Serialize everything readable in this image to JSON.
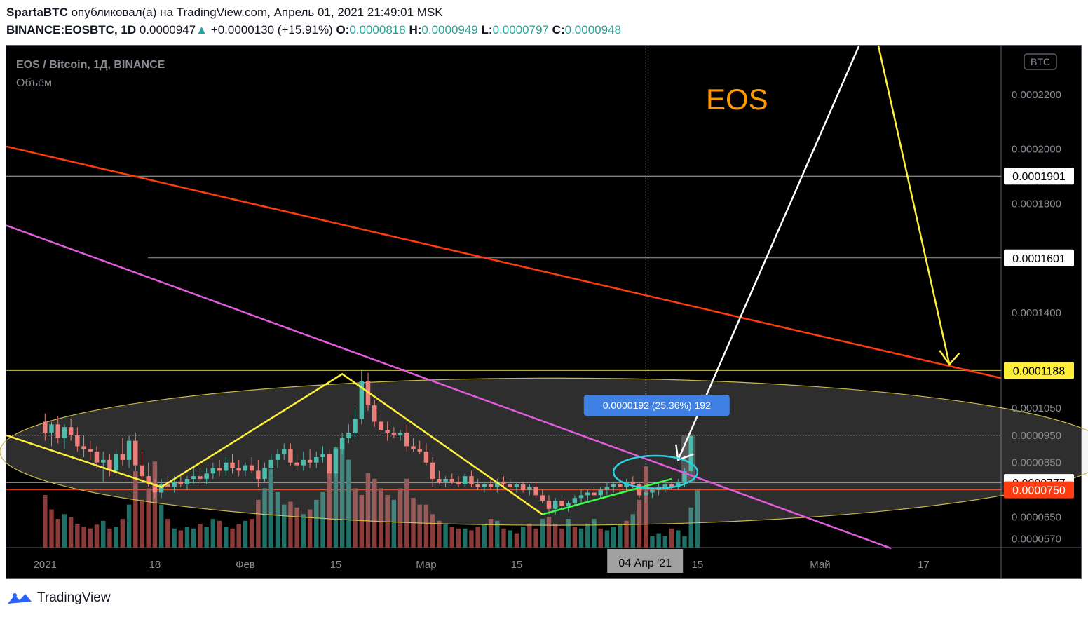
{
  "header": {
    "author": "SpartaBTC",
    "published": "опубликовал(а) на TradingView.com, Апрель 01, 2021 21:49:01 MSK",
    "symbol": "BINANCE:EOSBTC, 1D",
    "price": "0.0000947",
    "change": "+0.0000130 (+15.91%)",
    "o_label": "O:",
    "o": "0.0000818",
    "h_label": "H:",
    "h": "0.0000949",
    "l_label": "L:",
    "l": "0.0000797",
    "c_label": "C:",
    "c": "0.0000948"
  },
  "legend": {
    "title": "EOS / Bitcoin, 1Д, BINANCE",
    "volume": "Объём"
  },
  "currency_badge": "BTC",
  "annotation_text": "EOS",
  "measure_tooltip": "0.0000192 (25.36%) 192",
  "colors": {
    "up": "#4ebaab",
    "down": "#ef7f7a",
    "vol_up": "#1e6f66",
    "vol_down": "#8a3a38",
    "red_line": "#ff3b0f",
    "magenta_line": "#e55be0",
    "yellow": "#ffee3a",
    "green": "#39ff4a",
    "white": "#ffffff",
    "cyan": "#27d4e6"
  },
  "footer": {
    "brand": "TradingView",
    "logo_icon": "tradingview-cloud-icon"
  },
  "chart_data": {
    "type": "candlestick",
    "title": "EOS / Bitcoin, 1Д, BINANCE",
    "ylim": [
      5.38e-05,
      0.000238
    ],
    "y_ticks": [
      "0.0002200",
      "0.0002000",
      "0.0001800",
      "0.0001400",
      "0.0001050",
      "0.0000950",
      "0.0000850",
      "0.0000650",
      "0.0000570"
    ],
    "y_tick_values": [
      0.00022,
      0.0002,
      0.00018,
      0.00014,
      0.000105,
      9.5e-05,
      8.5e-05,
      6.5e-05,
      5.7e-05
    ],
    "price_labels": [
      {
        "text": "0.0001901",
        "value": 0.0001901,
        "style": "white"
      },
      {
        "text": "0.0001601",
        "value": 0.0001601,
        "style": "white"
      },
      {
        "text": "0.0001188",
        "value": 0.0001188,
        "style": "yellow"
      },
      {
        "text": "0.0000777",
        "value": 7.77e-05,
        "style": "white"
      },
      {
        "text": "0.0000750",
        "value": 7.5e-05,
        "style": "red"
      }
    ],
    "x_ticks": [
      "2021",
      "18",
      "Фев",
      "15",
      "Мар",
      "15",
      "15",
      "Май",
      "17"
    ],
    "x_tick_days": [
      0,
      17,
      31,
      45,
      59,
      73,
      101,
      120,
      136
    ],
    "crosshair_label": "04 Апр '21",
    "crosshair_day": 93,
    "x_range_days": [
      -6,
      148
    ],
    "candles": [
      {
        "o": 0.0001,
        "h": 0.000103,
        "l": 9.3e-05,
        "c": 9.6e-05
      },
      {
        "o": 9.6e-05,
        "h": 0.0001,
        "l": 9.1e-05,
        "c": 9.9e-05
      },
      {
        "o": 9.9e-05,
        "h": 0.000102,
        "l": 9.2e-05,
        "c": 9.4e-05
      },
      {
        "o": 9.4e-05,
        "h": 9.9e-05,
        "l": 9e-05,
        "c": 9.8e-05
      },
      {
        "o": 9.8e-05,
        "h": 0.000101,
        "l": 9.3e-05,
        "c": 9.5e-05
      },
      {
        "o": 9.5e-05,
        "h": 9.8e-05,
        "l": 8.9e-05,
        "c": 9.1e-05
      },
      {
        "o": 9.1e-05,
        "h": 9.5e-05,
        "l": 8.7e-05,
        "c": 9e-05
      },
      {
        "o": 9e-05,
        "h": 9.3e-05,
        "l": 8.6e-05,
        "c": 8.9e-05
      },
      {
        "o": 8.9e-05,
        "h": 9.1e-05,
        "l": 8.3e-05,
        "c": 8.5e-05
      },
      {
        "o": 8.5e-05,
        "h": 8.9e-05,
        "l": 7.8e-05,
        "c": 8.6e-05
      },
      {
        "o": 8.6e-05,
        "h": 8.8e-05,
        "l": 8e-05,
        "c": 8.2e-05
      },
      {
        "o": 8.2e-05,
        "h": 9e-05,
        "l": 8e-05,
        "c": 8.8e-05
      },
      {
        "o": 8.8e-05,
        "h": 9.4e-05,
        "l": 8.4e-05,
        "c": 8.6e-05
      },
      {
        "o": 8.6e-05,
        "h": 9.5e-05,
        "l": 8.3e-05,
        "c": 9.3e-05
      },
      {
        "o": 9.3e-05,
        "h": 9.6e-05,
        "l": 8.2e-05,
        "c": 8.4e-05
      },
      {
        "o": 8.4e-05,
        "h": 8.9e-05,
        "l": 7.8e-05,
        "c": 8e-05
      },
      {
        "o": 8e-05,
        "h": 8.5e-05,
        "l": 7.6e-05,
        "c": 7.7e-05
      },
      {
        "o": 7.7e-05,
        "h": 7.9e-05,
        "l": 7.2e-05,
        "c": 7.4e-05
      },
      {
        "o": 7.4e-05,
        "h": 7.9e-05,
        "l": 7.2e-05,
        "c": 7.7e-05
      },
      {
        "o": 7.7e-05,
        "h": 8e-05,
        "l": 7.4e-05,
        "c": 7.6e-05
      },
      {
        "o": 7.6e-05,
        "h": 8e-05,
        "l": 7.4e-05,
        "c": 7.8e-05
      },
      {
        "o": 7.8e-05,
        "h": 8.1e-05,
        "l": 7.6e-05,
        "c": 7.7e-05
      },
      {
        "o": 7.7e-05,
        "h": 8e-05,
        "l": 7.5e-05,
        "c": 7.9e-05
      },
      {
        "o": 7.9e-05,
        "h": 8.4e-05,
        "l": 7.7e-05,
        "c": 8e-05
      },
      {
        "o": 8e-05,
        "h": 8.3e-05,
        "l": 7.7e-05,
        "c": 7.9e-05
      },
      {
        "o": 7.9e-05,
        "h": 8.3e-05,
        "l": 7.7e-05,
        "c": 8.1e-05
      },
      {
        "o": 8.1e-05,
        "h": 8.5e-05,
        "l": 7.9e-05,
        "c": 8.3e-05
      },
      {
        "o": 8.3e-05,
        "h": 8.6e-05,
        "l": 8e-05,
        "c": 8.2e-05
      },
      {
        "o": 8.2e-05,
        "h": 8.7e-05,
        "l": 8e-05,
        "c": 8.5e-05
      },
      {
        "o": 8.5e-05,
        "h": 8.8e-05,
        "l": 8.1e-05,
        "c": 8.3e-05
      },
      {
        "o": 8.3e-05,
        "h": 8.6e-05,
        "l": 8e-05,
        "c": 8.2e-05
      },
      {
        "o": 8.2e-05,
        "h": 8.5e-05,
        "l": 8e-05,
        "c": 8.4e-05
      },
      {
        "o": 8.4e-05,
        "h": 8.7e-05,
        "l": 8.1e-05,
        "c": 8.2e-05
      },
      {
        "o": 8.2e-05,
        "h": 8.6e-05,
        "l": 7.6e-05,
        "c": 7.9e-05
      },
      {
        "o": 7.9e-05,
        "h": 8.5e-05,
        "l": 7.8e-05,
        "c": 8.3e-05
      },
      {
        "o": 8.3e-05,
        "h": 8.8e-05,
        "l": 8.1e-05,
        "c": 8.6e-05
      },
      {
        "o": 8.6e-05,
        "h": 9e-05,
        "l": 8.3e-05,
        "c": 8.8e-05
      },
      {
        "o": 8.8e-05,
        "h": 9.2e-05,
        "l": 8.6e-05,
        "c": 9e-05
      },
      {
        "o": 9e-05,
        "h": 9.2e-05,
        "l": 8.4e-05,
        "c": 8.5e-05
      },
      {
        "o": 8.5e-05,
        "h": 8.8e-05,
        "l": 8.2e-05,
        "c": 8.4e-05
      },
      {
        "o": 8.4e-05,
        "h": 8.9e-05,
        "l": 8.2e-05,
        "c": 8.6e-05
      },
      {
        "o": 8.6e-05,
        "h": 9e-05,
        "l": 8.3e-05,
        "c": 8.5e-05
      },
      {
        "o": 8.5e-05,
        "h": 8.9e-05,
        "l": 8.3e-05,
        "c": 8.7e-05
      },
      {
        "o": 8.7e-05,
        "h": 9.1e-05,
        "l": 8.5e-05,
        "c": 8.8e-05
      },
      {
        "o": 8.8e-05,
        "h": 9e-05,
        "l": 7.9e-05,
        "c": 8.1e-05
      },
      {
        "o": 8.1e-05,
        "h": 9.1e-05,
        "l": 8e-05,
        "c": 9e-05
      },
      {
        "o": 9e-05,
        "h": 9.6e-05,
        "l": 8.8e-05,
        "c": 9.4e-05
      },
      {
        "o": 9.4e-05,
        "h": 9.9e-05,
        "l": 9.2e-05,
        "c": 9.6e-05
      },
      {
        "o": 9.6e-05,
        "h": 0.000105,
        "l": 9.4e-05,
        "c": 0.000101
      },
      {
        "o": 0.000101,
        "h": 0.000119,
        "l": 9.9e-05,
        "c": 0.000115
      },
      {
        "o": 0.000115,
        "h": 0.000118,
        "l": 0.000104,
        "c": 0.000106
      },
      {
        "o": 0.000106,
        "h": 0.000108,
        "l": 9.8e-05,
        "c": 0.0001
      },
      {
        "o": 0.0001,
        "h": 0.000103,
        "l": 9.5e-05,
        "c": 9.7e-05
      },
      {
        "o": 9.7e-05,
        "h": 0.0001,
        "l": 9.3e-05,
        "c": 9.6e-05
      },
      {
        "o": 9.6e-05,
        "h": 9.8e-05,
        "l": 9.4e-05,
        "c": 9.5e-05
      },
      {
        "o": 9.5e-05,
        "h": 9.7e-05,
        "l": 9.3e-05,
        "c": 9.6e-05
      },
      {
        "o": 9.6e-05,
        "h": 9.9e-05,
        "l": 8.9e-05,
        "c": 9.1e-05
      },
      {
        "o": 9.1e-05,
        "h": 9.4e-05,
        "l": 8.9e-05,
        "c": 9e-05
      },
      {
        "o": 9e-05,
        "h": 9.3e-05,
        "l": 8.8e-05,
        "c": 8.9e-05
      },
      {
        "o": 8.9e-05,
        "h": 9.2e-05,
        "l": 8.4e-05,
        "c": 8.5e-05
      },
      {
        "o": 8.5e-05,
        "h": 8.7e-05,
        "l": 7.6e-05,
        "c": 7.9e-05
      },
      {
        "o": 7.9e-05,
        "h": 8.2e-05,
        "l": 7.7e-05,
        "c": 7.8e-05
      },
      {
        "o": 7.8e-05,
        "h": 8e-05,
        "l": 7.6e-05,
        "c": 7.9e-05
      },
      {
        "o": 7.9e-05,
        "h": 8.1e-05,
        "l": 7.7e-05,
        "c": 7.8e-05
      },
      {
        "o": 7.8e-05,
        "h": 8e-05,
        "l": 7.6e-05,
        "c": 7.7e-05
      },
      {
        "o": 7.7e-05,
        "h": 8.1e-05,
        "l": 7.6e-05,
        "c": 8e-05
      },
      {
        "o": 8e-05,
        "h": 8.2e-05,
        "l": 7.6e-05,
        "c": 7.7e-05
      },
      {
        "o": 7.7e-05,
        "h": 7.9e-05,
        "l": 7.5e-05,
        "c": 7.6e-05
      },
      {
        "o": 7.6e-05,
        "h": 7.8e-05,
        "l": 7.4e-05,
        "c": 7.7e-05
      },
      {
        "o": 7.7e-05,
        "h": 7.9e-05,
        "l": 7.5e-05,
        "c": 7.6e-05
      },
      {
        "o": 7.6e-05,
        "h": 7.9e-05,
        "l": 7.4e-05,
        "c": 7.8e-05
      },
      {
        "o": 7.8e-05,
        "h": 8e-05,
        "l": 7.6e-05,
        "c": 7.7e-05
      },
      {
        "o": 7.7e-05,
        "h": 7.9e-05,
        "l": 7.5e-05,
        "c": 7.6e-05
      },
      {
        "o": 7.6e-05,
        "h": 7.8e-05,
        "l": 7.4e-05,
        "c": 7.7e-05
      },
      {
        "o": 7.7e-05,
        "h": 7.8e-05,
        "l": 7.4e-05,
        "c": 7.5e-05
      },
      {
        "o": 7.5e-05,
        "h": 7.7e-05,
        "l": 7.3e-05,
        "c": 7.6e-05
      },
      {
        "o": 7.6e-05,
        "h": 7.8e-05,
        "l": 7.2e-05,
        "c": 7.3e-05
      },
      {
        "o": 7.3e-05,
        "h": 7.5e-05,
        "l": 7e-05,
        "c": 7.1e-05
      },
      {
        "o": 7.1e-05,
        "h": 7.3e-05,
        "l": 6.6e-05,
        "c": 6.8e-05
      },
      {
        "o": 6.8e-05,
        "h": 7.2e-05,
        "l": 6.6e-05,
        "c": 7.1e-05
      },
      {
        "o": 7.1e-05,
        "h": 7.3e-05,
        "l": 6.8e-05,
        "c": 6.9e-05
      },
      {
        "o": 6.9e-05,
        "h": 7.1e-05,
        "l": 6.7e-05,
        "c": 7e-05
      },
      {
        "o": 7e-05,
        "h": 7.3e-05,
        "l": 6.9e-05,
        "c": 7.2e-05
      },
      {
        "o": 7.2e-05,
        "h": 7.5e-05,
        "l": 7e-05,
        "c": 7.3e-05
      },
      {
        "o": 7.3e-05,
        "h": 7.5e-05,
        "l": 7.1e-05,
        "c": 7.4e-05
      },
      {
        "o": 7.4e-05,
        "h": 7.6e-05,
        "l": 7.2e-05,
        "c": 7.3e-05
      },
      {
        "o": 7.3e-05,
        "h": 7.6e-05,
        "l": 7.2e-05,
        "c": 7.5e-05
      },
      {
        "o": 7.5e-05,
        "h": 7.8e-05,
        "l": 7.3e-05,
        "c": 7.6e-05
      },
      {
        "o": 7.6e-05,
        "h": 7.8e-05,
        "l": 7.4e-05,
        "c": 7.7e-05
      },
      {
        "o": 7.7e-05,
        "h": 7.9e-05,
        "l": 7.4e-05,
        "c": 7.6e-05
      },
      {
        "o": 7.6e-05,
        "h": 7.9e-05,
        "l": 7.4e-05,
        "c": 7.8e-05
      },
      {
        "o": 7.8e-05,
        "h": 8e-05,
        "l": 7.5e-05,
        "c": 7.7e-05
      },
      {
        "o": 7.7e-05,
        "h": 7.8e-05,
        "l": 7.2e-05,
        "c": 7.3e-05
      },
      {
        "o": 7.3e-05,
        "h": 7.6e-05,
        "l": 7e-05,
        "c": 7.4e-05
      },
      {
        "o": 7.4e-05,
        "h": 7.6e-05,
        "l": 7.2e-05,
        "c": 7.5e-05
      },
      {
        "o": 7.5e-05,
        "h": 7.8e-05,
        "l": 7.3e-05,
        "c": 7.6e-05
      },
      {
        "o": 7.6e-05,
        "h": 7.8e-05,
        "l": 7.4e-05,
        "c": 7.7e-05
      },
      {
        "o": 7.7e-05,
        "h": 7.8e-05,
        "l": 7.5e-05,
        "c": 7.6e-05
      },
      {
        "o": 7.6e-05,
        "h": 7.9e-05,
        "l": 7.5e-05,
        "c": 7.8e-05
      },
      {
        "o": 7.8e-05,
        "h": 8.3e-05,
        "l": 7.6e-05,
        "c": 8.18e-05
      },
      {
        "o": 8.18e-05,
        "h": 9.49e-05,
        "l": 7.97e-05,
        "c": 9.48e-05
      }
    ],
    "volume": [
      0.55,
      0.4,
      0.3,
      0.35,
      0.32,
      0.25,
      0.22,
      0.2,
      0.24,
      0.28,
      0.2,
      0.22,
      0.3,
      0.45,
      0.8,
      0.5,
      0.62,
      0.9,
      0.45,
      0.3,
      0.2,
      0.18,
      0.22,
      0.2,
      0.25,
      0.22,
      0.3,
      0.28,
      0.22,
      0.2,
      0.25,
      0.28,
      0.3,
      0.5,
      0.62,
      0.82,
      0.58,
      0.45,
      0.48,
      0.42,
      0.35,
      0.4,
      0.5,
      0.58,
      0.78,
      1.05,
      1.05,
      0.92,
      0.62,
      0.55,
      0.78,
      0.72,
      0.62,
      0.55,
      0.5,
      0.62,
      0.72,
      0.52,
      0.45,
      0.45,
      0.35,
      0.28,
      0.25,
      0.22,
      0.2,
      0.2,
      0.18,
      0.22,
      0.25,
      0.3,
      0.28,
      0.2,
      0.18,
      0.15,
      0.22,
      0.25,
      0.2,
      0.3,
      0.32,
      0.25,
      0.2,
      0.3,
      0.22,
      0.2,
      0.25,
      0.3,
      0.2,
      0.18,
      0.22,
      0.25,
      0.28,
      0.35,
      0.5,
      0.85,
      0.12,
      0.15,
      0.12,
      0.2,
      0.18,
      0.12,
      0.42,
      0.6
    ],
    "volume_up": [
      false,
      false,
      false,
      true,
      false,
      false,
      false,
      false,
      false,
      true,
      false,
      true,
      false,
      true,
      false,
      false,
      false,
      false,
      true,
      false,
      true,
      false,
      true,
      true,
      false,
      true,
      true,
      false,
      true,
      false,
      false,
      true,
      false,
      false,
      true,
      true,
      true,
      true,
      false,
      false,
      true,
      false,
      true,
      true,
      false,
      true,
      true,
      true,
      false,
      false,
      false,
      false,
      false,
      false,
      true,
      false,
      false,
      false,
      false,
      false,
      false,
      false,
      true,
      false,
      false,
      true,
      false,
      false,
      true,
      false,
      true,
      false,
      true,
      false,
      true,
      false,
      false,
      true,
      false,
      false,
      false,
      true,
      false,
      true,
      true,
      true,
      false,
      true,
      true,
      true,
      false,
      true,
      false,
      false,
      true,
      true,
      true,
      false,
      true,
      true,
      true,
      true
    ],
    "drawings": {
      "red_trend": [
        [
          -6,
          0.000201
        ],
        [
          148,
          0.000116
        ]
      ],
      "magenta_trend": [
        [
          -6,
          0.000172
        ],
        [
          131,
          5.35e-05
        ]
      ],
      "yellow_zigzag": [
        [
          -6,
          9.5e-05
        ],
        [
          18,
          7.6e-05
        ],
        [
          46,
          0.0001175
        ],
        [
          77,
          6.6e-05
        ]
      ],
      "green_trend": [
        [
          77,
          6.6e-05
        ],
        [
          97,
          7.9e-05
        ]
      ],
      "h_lines": [
        0.0001901,
        0.0001601,
        0.0001188,
        9.5e-05,
        7.77e-05,
        7.5e-05
      ],
      "ellipse": {
        "cx_day": 79,
        "cy": 8.9e-05,
        "rx_days": 86,
        "ry_value": 2.7e-05
      },
      "white_arrow": [
        [
          98,
          8.6e-05
        ],
        [
          126,
          0.000238
        ]
      ],
      "yellow_arrow": [
        [
          129,
          0.000238
        ],
        [
          140,
          0.000121
        ]
      ],
      "cyan_circle": {
        "cx_day": 94.5,
        "cy": 8.15e-05,
        "rx_days": 6.5,
        "ry_value": 6e-06
      }
    }
  }
}
